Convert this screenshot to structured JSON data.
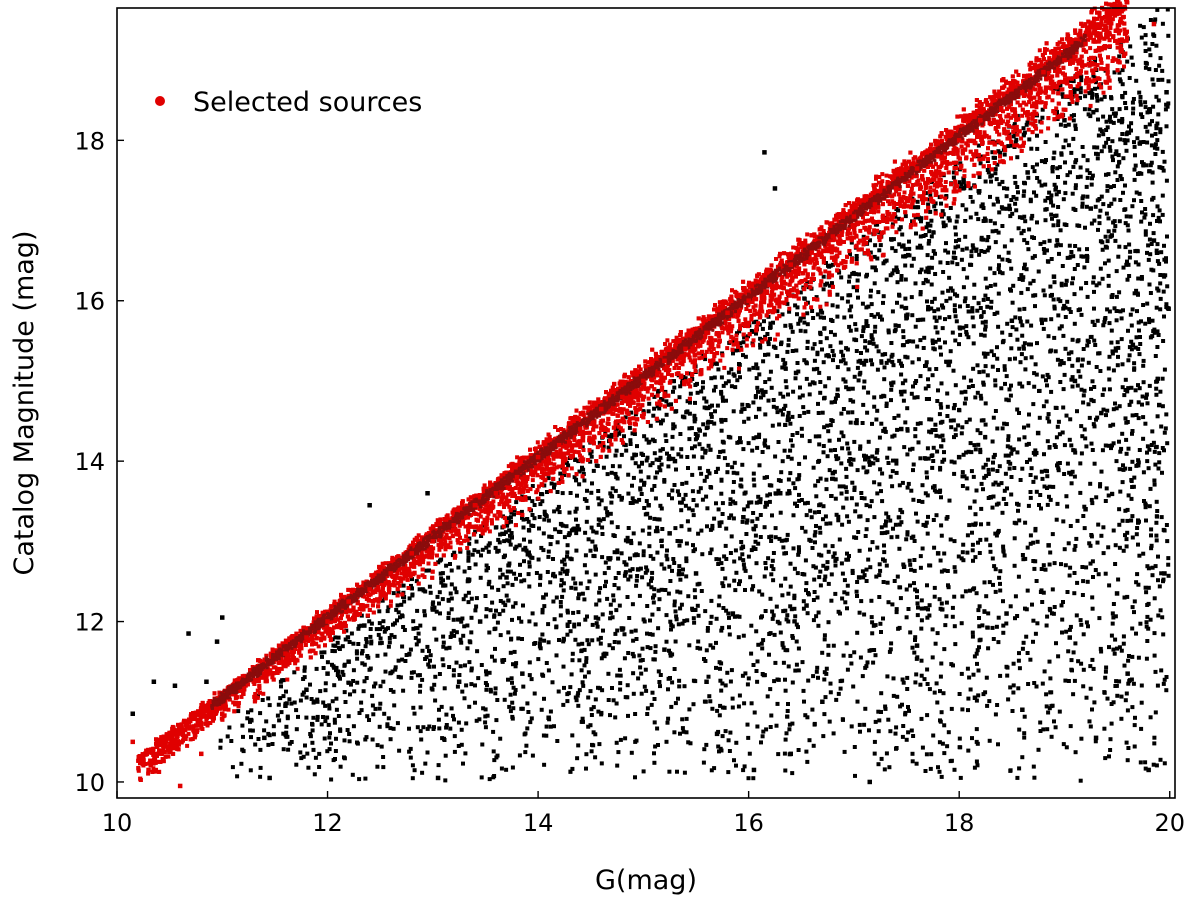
{
  "chart_data": {
    "type": "scatter",
    "title": "",
    "xlabel": "G(mag)",
    "ylabel": "Catalog Magnitude (mag)",
    "xlim": [
      10.0,
      20.05
    ],
    "ylim": [
      9.8,
      19.65
    ],
    "xticks": [
      10,
      12,
      14,
      16,
      18,
      20
    ],
    "yticks": [
      10,
      12,
      14,
      16,
      18
    ],
    "grid": false,
    "legend": {
      "placement": "top-left",
      "entries": [
        "Selected sources"
      ]
    },
    "series": [
      {
        "name": "",
        "color": "#000000",
        "marker": "square",
        "description_points": "all sources: filled wedge between the 1:1 relation and the lower-right corner, increasingly dense toward faint G",
        "points": [
          [
            10.15,
            10.85
          ],
          [
            10.35,
            11.25
          ],
          [
            10.55,
            11.2
          ],
          [
            10.68,
            11.85
          ],
          [
            10.85,
            11.25
          ],
          [
            11.0,
            12.05
          ],
          [
            10.95,
            11.75
          ],
          [
            11.45,
            10.05
          ],
          [
            11.4,
            10.55
          ],
          [
            11.6,
            10.95
          ],
          [
            11.8,
            11.15
          ],
          [
            12.0,
            11.35
          ],
          [
            12.2,
            11.5
          ],
          [
            12.35,
            11.95
          ],
          [
            12.4,
            13.45
          ],
          [
            12.95,
            13.6
          ],
          [
            13.0,
            12.15
          ],
          [
            13.1,
            12.45
          ],
          [
            13.05,
            10.05
          ],
          [
            13.25,
            11.25
          ],
          [
            13.45,
            12.0
          ],
          [
            13.7,
            12.55
          ],
          [
            13.75,
            13.05
          ],
          [
            13.85,
            11.35
          ],
          [
            14.1,
            10.8
          ],
          [
            14.05,
            12.3
          ],
          [
            14.3,
            13.1
          ],
          [
            14.55,
            12.05
          ],
          [
            14.8,
            11.9
          ],
          [
            14.95,
            12.65
          ],
          [
            15.05,
            13.45
          ],
          [
            15.2,
            11.65
          ],
          [
            15.25,
            13.1
          ],
          [
            15.3,
            14.0
          ],
          [
            15.5,
            12.6
          ],
          [
            15.6,
            11.25
          ],
          [
            15.7,
            10.6
          ],
          [
            15.85,
            12.1
          ],
          [
            15.95,
            13.3
          ],
          [
            16.05,
            10.15
          ],
          [
            16.1,
            14.65
          ],
          [
            16.15,
            17.85
          ],
          [
            16.25,
            17.4
          ],
          [
            16.3,
            13.6
          ],
          [
            16.4,
            10.35
          ],
          [
            16.45,
            15.1
          ],
          [
            16.55,
            12.2
          ],
          [
            16.7,
            11.0
          ],
          [
            16.8,
            13.85
          ],
          [
            16.95,
            14.9
          ],
          [
            17.05,
            12.55
          ],
          [
            17.15,
            10.0
          ],
          [
            17.25,
            15.8
          ],
          [
            17.3,
            13.2
          ],
          [
            17.45,
            14.4
          ],
          [
            17.6,
            11.7
          ],
          [
            17.7,
            16.4
          ],
          [
            17.8,
            12.85
          ],
          [
            17.9,
            15.2
          ],
          [
            18.0,
            14.05
          ],
          [
            18.15,
            11.05
          ],
          [
            18.25,
            17.0
          ],
          [
            18.3,
            13.55
          ],
          [
            18.45,
            12.1
          ],
          [
            18.5,
            15.75
          ],
          [
            18.6,
            10.9
          ],
          [
            18.65,
            17.6
          ],
          [
            18.75,
            14.35
          ],
          [
            18.85,
            12.95
          ],
          [
            18.9,
            16.3
          ],
          [
            19.0,
            18.25
          ],
          [
            19.05,
            11.8
          ],
          [
            19.1,
            15.0
          ],
          [
            19.2,
            13.4
          ],
          [
            19.25,
            17.15
          ],
          [
            19.3,
            10.55
          ],
          [
            19.35,
            14.6
          ],
          [
            19.45,
            16.05
          ],
          [
            19.5,
            12.35
          ],
          [
            19.55,
            18.55
          ],
          [
            19.6,
            11.35
          ],
          [
            19.65,
            15.45
          ],
          [
            19.7,
            13.95
          ],
          [
            19.75,
            17.7
          ],
          [
            19.8,
            10.15
          ],
          [
            19.85,
            16.75
          ],
          [
            19.9,
            14.7
          ],
          [
            19.95,
            12.6
          ],
          [
            19.97,
            18.6
          ],
          [
            19.99,
            15.9
          ]
        ]
      },
      {
        "name": "Selected sources",
        "color": "#e00000",
        "marker": "square",
        "description_points": "selected sources: narrow band along the one-to-one relation from G≈10.1 to G≈19.8",
        "points": [
          [
            10.15,
            10.5
          ],
          [
            10.3,
            10.15
          ],
          [
            10.5,
            10.55
          ],
          [
            10.6,
            9.95
          ],
          [
            10.8,
            10.35
          ],
          [
            11.0,
            10.85
          ],
          [
            11.2,
            11.1
          ],
          [
            11.4,
            11.35
          ],
          [
            11.6,
            11.6
          ],
          [
            11.8,
            11.8
          ],
          [
            12.0,
            12.0
          ],
          [
            12.2,
            12.25
          ],
          [
            12.4,
            12.4
          ],
          [
            12.6,
            12.6
          ],
          [
            12.8,
            12.85
          ],
          [
            13.0,
            13.0
          ],
          [
            13.2,
            13.2
          ],
          [
            13.4,
            13.45
          ],
          [
            13.6,
            13.6
          ],
          [
            13.8,
            13.8
          ],
          [
            14.0,
            14.05
          ],
          [
            14.2,
            14.2
          ],
          [
            14.4,
            14.4
          ],
          [
            14.6,
            14.65
          ],
          [
            14.8,
            14.8
          ],
          [
            15.0,
            15.0
          ],
          [
            15.2,
            15.25
          ],
          [
            15.4,
            15.4
          ],
          [
            15.6,
            15.6
          ],
          [
            15.8,
            15.85
          ],
          [
            16.0,
            16.0
          ],
          [
            16.2,
            16.2
          ],
          [
            16.4,
            16.45
          ],
          [
            16.6,
            16.6
          ],
          [
            16.8,
            16.8
          ],
          [
            17.0,
            17.05
          ],
          [
            17.2,
            17.2
          ],
          [
            17.4,
            17.4
          ],
          [
            17.6,
            17.65
          ],
          [
            17.8,
            17.8
          ],
          [
            18.0,
            18.0
          ],
          [
            18.2,
            18.25
          ],
          [
            18.4,
            18.4
          ],
          [
            18.6,
            18.6
          ],
          [
            18.8,
            18.85
          ],
          [
            19.0,
            19.0
          ],
          [
            19.2,
            19.2
          ],
          [
            19.4,
            19.35
          ],
          [
            19.85,
            19.45
          ]
        ]
      }
    ]
  }
}
